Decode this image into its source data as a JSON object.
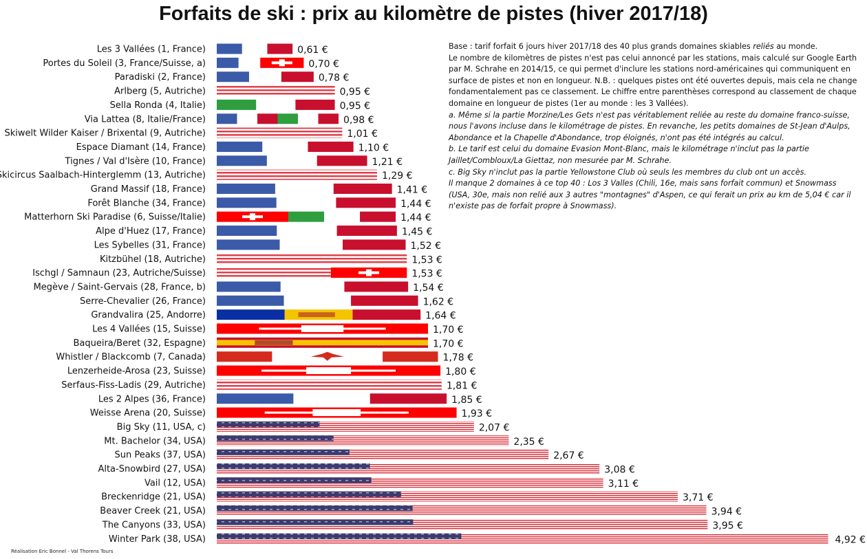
{
  "title": "Forfaits de ski : prix au kilomètre de pistes (hiver 2017/18)",
  "notes": {
    "intro_1": "Base : tarif forfait 6 jours hiver 2017/18 des 40 plus grands domaines skiables ",
    "intro_em": "reliés",
    "intro_2": " au monde.",
    "para": "Le nombre de kilomètres de pistes n'est pas celui annoncé par les stations, mais calculé sur Google Earth par M. Schrahe en 2014/15, ce qui permet d'inclure les stations nord-américaines qui communiquent en surface de pistes et non en longueur. N.B. : quelques pistes ont été ouvertes depuis,  mais cela ne change fondamentalement pas ce classement. Le chiffre entre parenthèses correspond au classement de chaque domaine en longueur de pistes (1er au monde : les 3 Vallées).",
    "note_a": "a. Même si la partie Morzine/Les Gets n'est pas véritablement reliée au reste du domaine franco-suisse, nous l'avons incluse dans le kilométrage de pistes. En revanche, les petits domaines de St-Jean d'Aulps, Abondance et la Chapelle d'Abondance, trop éloignés, n'ont pas été intégrés au calcul.",
    "note_b": "b. Le tarif est celui du domaine Evasion Mont-Blanc, mais le kilométrage n'inclut pas la partie Jaillet/Combloux/La  Giettaz, non mesurée par M. Schrahe.",
    "note_c": "c. Big Sky n'inclut pas la partie Yellowstone Club où seuls les membres du club ont un accès.",
    "note_d": "Il manque 2 domaines à ce top 40 : Los 3 Valles (Chili, 16e, mais sans forfait commun) et Snowmass  (USA, 30e, mais non relié aux 3 autres \"montagnes\" d'Aspen, ce qui ferait un prix au km de 5,04 € car  il n'existe pas de forfait propre à Snowmass)."
  },
  "credit": "Réalisation Eric Bonnel - Val Thorens Tours",
  "colors": {
    "fr_blue": "#3b5ba8",
    "fr_red": "#c8102e",
    "swiss_red": "#ff0000",
    "it_green": "#2e9e3e",
    "us_blue": "#3c3b6e",
    "us_red": "#d8323c",
    "at_red": "#e0404a",
    "ad_blue": "#0a2fa3",
    "es_yellow": "#f5c400",
    "ca_red": "#d52b1e"
  },
  "chart_data": {
    "type": "bar",
    "orientation": "horizontal",
    "value_unit": "€",
    "categories": [
      "Les 3 Vallées (1, France)",
      "Portes du Soleil (3, France/Suisse, a)",
      "Paradiski (2, France)",
      "Arlberg (5, Autriche)",
      "Sella Ronda (4, Italie)",
      "Via Lattea (8, Italie/France)",
      "Skiwelt Wilder Kaiser / Brixental (9, Autriche)",
      "Espace Diamant (14, France)",
      "Tignes / Val d'Isère (10, France)",
      "Skicircus Saalbach-Hinterglemm (13, Autriche)",
      "Grand Massif (18, France)",
      "Forêt Blanche (34, France)",
      "Matterhorn Ski Paradise (6, Suisse/Italie)",
      "Alpe d'Huez (17, France)",
      "Les Sybelles (31, France)",
      "Kitzbühel (18, Autriche)",
      "Ischgl / Samnaun (23, Autriche/Suisse)",
      "Megève / Saint-Gervais (28, France, b)",
      "Serre-Chevalier (26, France)",
      "Grandvalira (25, Andorre)",
      "Les 4 Vallées (15, Suisse)",
      "Baqueira/Beret (32, Espagne)",
      "Whistler / Blackcomb (7, Canada)",
      "Lenzerheide-Arosa (23, Suisse)",
      "Serfaus-Fiss-Ladis (29, Autriche)",
      "Les 2 Alpes (36, France)",
      "Weisse Arena (20, Suisse)",
      "Big Sky (11, USA, c)",
      "Mt. Bachelor (34, USA)",
      "Sun Peaks (37, USA)",
      "Alta-Snowbird (27, USA)",
      "Vail (12, USA)",
      "Breckenridge (21, USA)",
      "Beaver Creek (21, USA)",
      "The Canyons (33, USA)",
      "Winter Park (38, USA)"
    ],
    "values": [
      0.61,
      0.7,
      0.78,
      0.95,
      0.95,
      0.98,
      1.01,
      1.1,
      1.21,
      1.29,
      1.41,
      1.44,
      1.44,
      1.45,
      1.52,
      1.53,
      1.53,
      1.54,
      1.62,
      1.64,
      1.7,
      1.7,
      1.78,
      1.8,
      1.81,
      1.85,
      1.93,
      2.07,
      2.35,
      2.67,
      3.08,
      3.11,
      3.71,
      3.94,
      3.95,
      4.92
    ],
    "value_labels": [
      "0,61 €",
      "0,70 €",
      "0,78 €",
      "0,95 €",
      "0,95 €",
      "0,98 €",
      "1,01 €",
      "1,10 €",
      "1,21 €",
      "1,29 €",
      "1,41 €",
      "1,44 €",
      "1,44 €",
      "1,45 €",
      "1,52 €",
      "1,53 €",
      "1,53 €",
      "1,54 €",
      "1,62 €",
      "1,64 €",
      "1,70 €",
      "1,70 €",
      "1,78 €",
      "1,80 €",
      "1,81 €",
      "1,85 €",
      "1,93 €",
      "2,07 €",
      "2,35 €",
      "2,67 €",
      "3,08 €",
      "3,11 €",
      "3,71 €",
      "3,94 €",
      "3,95 €",
      "4,92 €"
    ],
    "bar_fill": [
      "france",
      "swiss-mix",
      "france",
      "austria",
      "italy",
      "italy-france",
      "austria",
      "france",
      "france",
      "austria",
      "france",
      "france",
      "swiss-italy",
      "france",
      "france",
      "austria",
      "austria-swiss",
      "france",
      "france",
      "andorra",
      "swiss",
      "spain",
      "canada",
      "swiss",
      "austria",
      "france",
      "swiss",
      "usa",
      "usa",
      "usa",
      "usa",
      "usa",
      "usa",
      "usa",
      "usa",
      "usa"
    ],
    "xlim": [
      0,
      5
    ],
    "grid": false,
    "legend": "none"
  }
}
